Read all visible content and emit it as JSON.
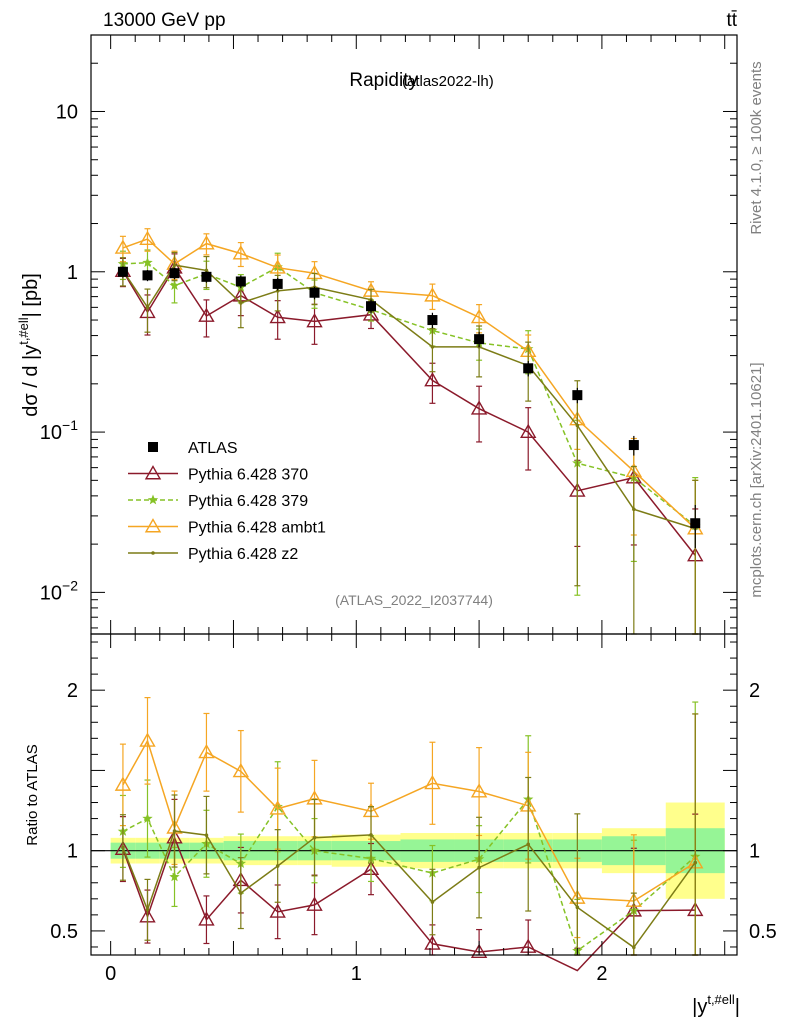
{
  "header": {
    "energy_label": "13000 GeV pp",
    "process_label": "tt̄"
  },
  "side": {
    "rivet_label": "Rivet 4.1.0, ≥ 100k events",
    "mcplots_label": "mcplots.cern.ch [arXiv:2401.10621]"
  },
  "chart_data": {
    "type": "line",
    "title": "Rapidity",
    "subtitle": "(atlas2022-lh)",
    "analysis_id": "(ATLAS_2022_I2037744)",
    "ylabel": "dσ / d |y^{t,#ell}| [pb]",
    "ylabel_main": "dσ / d |y",
    "ylabel_sup": "t,#ell",
    "ylabel_tail": "| [pb]",
    "xlabel": "|y^{t,#ell}|",
    "xlabel_main": "|y",
    "xlabel_sup": "t,#ell",
    "xlabel_tail": "|",
    "ratio_ylabel": "Ratio to ATLAS",
    "xlim": [
      -0.08,
      2.55
    ],
    "ylim": [
      0.0055,
      30
    ],
    "yscale": "log",
    "ratio_ylim": [
      0.35,
      2.35
    ],
    "main_yticks": [
      {
        "value": 10,
        "label": "10"
      },
      {
        "value": 1,
        "label": "1"
      },
      {
        "value": 0.1,
        "label": "10",
        "sup": "−1"
      },
      {
        "value": 0.01,
        "label": "10",
        "sup": "−2"
      }
    ],
    "ratio_yticks": [
      {
        "value": 2,
        "label": "2"
      },
      {
        "value": 1,
        "label": "1"
      },
      {
        "value": 0.5,
        "label": "0.5"
      }
    ],
    "xticks": [
      {
        "value": 0,
        "label": "0"
      },
      {
        "value": 1,
        "label": "1"
      },
      {
        "value": 2,
        "label": "2"
      }
    ],
    "bins": [
      0.0,
      0.1,
      0.2,
      0.32,
      0.46,
      0.6,
      0.76,
      0.9,
      1.18,
      1.4,
      1.6,
      1.8,
      2.0,
      2.26,
      2.5
    ],
    "x": [
      0.05,
      0.15,
      0.26,
      0.39,
      0.53,
      0.68,
      0.83,
      1.06,
      1.31,
      1.5,
      1.7,
      1.9,
      2.13,
      2.38
    ],
    "data": {
      "name": "ATLAS",
      "values": [
        1.0,
        0.95,
        0.98,
        0.93,
        0.87,
        0.84,
        0.74,
        0.61,
        0.5,
        0.38,
        0.25,
        0.17,
        0.083,
        0.027
      ],
      "band_inner": [
        0.05,
        0.05,
        0.05,
        0.05,
        0.06,
        0.06,
        0.06,
        0.06,
        0.07,
        0.07,
        0.07,
        0.07,
        0.09,
        0.14
      ],
      "band_outer": [
        0.08,
        0.08,
        0.08,
        0.08,
        0.09,
        0.09,
        0.09,
        0.1,
        0.11,
        0.11,
        0.11,
        0.11,
        0.14,
        0.3
      ]
    },
    "series": [
      {
        "name": "Pythia 6.428 370",
        "color": "#8b1a2b",
        "marker": "triangle-open",
        "dash": "",
        "values": [
          1.01,
          0.56,
          1.06,
          0.53,
          0.71,
          0.52,
          0.49,
          0.54,
          0.21,
          0.14,
          0.1,
          0.043,
          0.052,
          0.017
        ],
        "rel_err": [
          0.2,
          0.28,
          0.22,
          0.26,
          0.25,
          0.27,
          0.28,
          0.18,
          0.28,
          0.38,
          0.42,
          0.55,
          0.62,
          0.95
        ]
      },
      {
        "name": "Pythia 6.428 379",
        "color": "#86c226",
        "marker": "star",
        "dash": "5,3",
        "values": [
          1.12,
          1.14,
          0.82,
          0.97,
          0.8,
          1.07,
          0.74,
          0.58,
          0.43,
          0.36,
          0.33,
          0.064,
          0.052,
          0.026
        ],
        "rel_err": [
          0.2,
          0.2,
          0.22,
          0.2,
          0.2,
          0.22,
          0.2,
          0.15,
          0.2,
          0.22,
          0.3,
          0.85,
          0.7,
          1.0
        ]
      },
      {
        "name": "Pythia 6.428 ambt1",
        "color": "#f5a623",
        "marker": "triangle-open",
        "dash": "",
        "values": [
          1.41,
          1.6,
          1.12,
          1.5,
          1.3,
          1.06,
          0.98,
          0.76,
          0.71,
          0.52,
          0.32,
          0.12,
          0.057,
          0.025
        ],
        "rel_err": [
          0.18,
          0.16,
          0.2,
          0.15,
          0.17,
          0.2,
          0.18,
          0.14,
          0.18,
          0.2,
          0.26,
          0.35,
          0.6,
          1.0
        ]
      },
      {
        "name": "Pythia 6.428 z2",
        "color": "#7c7c16",
        "marker": "dot",
        "dash": "",
        "values": [
          1.02,
          0.6,
          1.1,
          1.02,
          0.64,
          0.76,
          0.8,
          0.67,
          0.34,
          0.34,
          0.26,
          0.11,
          0.033,
          0.025
        ],
        "rel_err": [
          0.2,
          0.3,
          0.2,
          0.22,
          0.3,
          0.25,
          0.22,
          0.16,
          0.3,
          0.35,
          0.4,
          0.9,
          0.85,
          1.0
        ]
      }
    ]
  }
}
